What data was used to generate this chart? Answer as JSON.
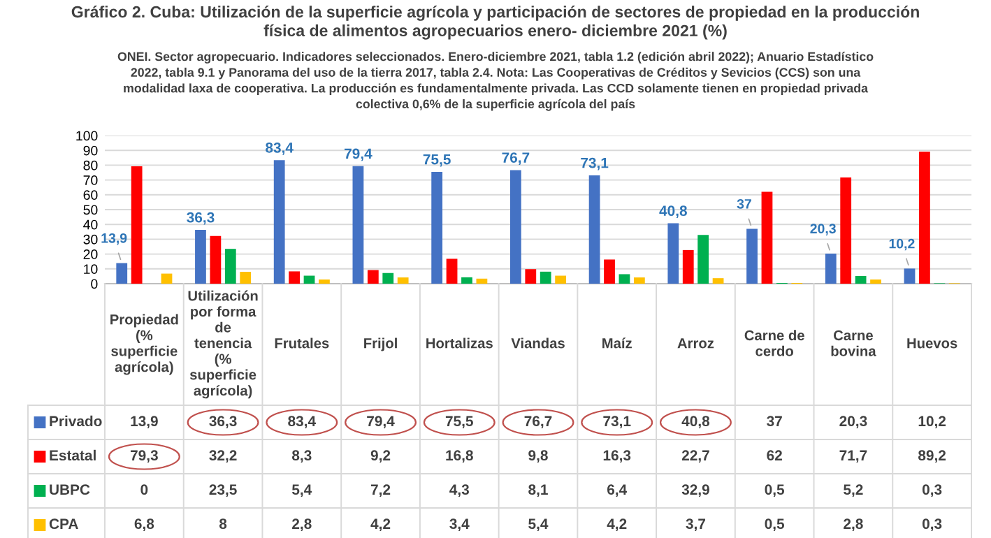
{
  "chart_data": {
    "type": "bar",
    "title": "Gráfico 2. Cuba: Utilización de la superficie agrícola y participación de sectores de propiedad en la producción\nfísica de alimentos agropecuarios enero- diciembre 2021 (%)",
    "subtitle": "ONEI. Sector agropecuario. Indicadores seleccionados. Enero-diciembre 2021, tabla 1.2 (edición abril 2022); Anuario Estadístico\n2022, tabla 9.1 y Panorama del uso de la tierra 2017, tabla 2.4. Nota: Las Cooperativas de Créditos y Sevicios (CCS) son una\nmodalidad laxa de cooperativa. La producción es fundamentalmente privada. Las CCD solamente tienen en propiedad privada\ncolectiva 0,6% de la superficie agrícola del país",
    "categories": [
      "Propiedad\n(%\nsuperficie\nagrícola)",
      "Utilización\npor forma\nde\ntenencia\n(%\nsuperficie\nagrícola)",
      "Frutales",
      "Frijol",
      "Hortalizas",
      "Viandas",
      "Maíz",
      "Arroz",
      "Carne de\ncerdo",
      "Carne\nbovina",
      "Huevos"
    ],
    "series": [
      {
        "name": "Privado",
        "color": "#4472c4",
        "values": [
          13.9,
          36.3,
          83.4,
          79.4,
          75.5,
          76.7,
          73.1,
          40.8,
          37,
          20.3,
          10.2
        ],
        "value_labels": [
          "13,9",
          "36,3",
          "83,4",
          "79,4",
          "75,5",
          "76,7",
          "73,1",
          "40,8",
          "37",
          "20,3",
          "10,2"
        ]
      },
      {
        "name": "Estatal",
        "color": "#ff0000",
        "values": [
          79.3,
          32.2,
          8.3,
          9.2,
          16.8,
          9.8,
          16.3,
          22.7,
          62,
          71.7,
          89.2
        ],
        "value_labels": [
          "79,3",
          "32,2",
          "8,3",
          "9,2",
          "16,8",
          "9,8",
          "16,3",
          "22,7",
          "62",
          "71,7",
          "89,2"
        ]
      },
      {
        "name": "UBPC",
        "color": "#00b050",
        "values": [
          0,
          23.5,
          5.4,
          7.2,
          4.3,
          8.1,
          6.4,
          32.9,
          0.5,
          5.2,
          0.3
        ],
        "value_labels": [
          "0",
          "23,5",
          "5,4",
          "7,2",
          "4,3",
          "8,1",
          "6,4",
          "32,9",
          "0,5",
          "5,2",
          "0,3"
        ]
      },
      {
        "name": "CPA",
        "color": "#ffc000",
        "values": [
          6.8,
          8,
          2.8,
          4.2,
          3.4,
          5.4,
          4.2,
          3.7,
          0.5,
          2.8,
          0.3
        ],
        "value_labels": [
          "6,8",
          "8",
          "2,8",
          "4,2",
          "3,4",
          "5,4",
          "4,2",
          "3,7",
          "0,5",
          "2,8",
          "0,3"
        ]
      }
    ],
    "ylim": [
      0,
      100
    ],
    "yticks": [
      0,
      10,
      20,
      30,
      40,
      50,
      60,
      70,
      80,
      90,
      100
    ],
    "grid": "y",
    "legend": "bottom"
  }
}
